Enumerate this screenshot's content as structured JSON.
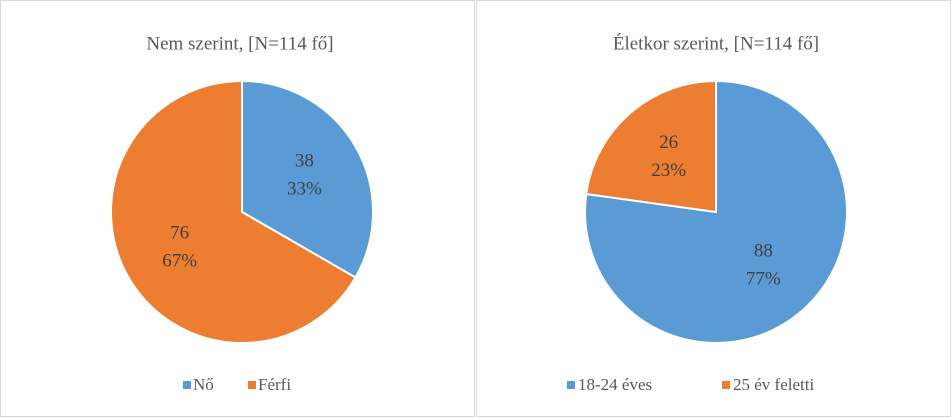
{
  "chart_data": [
    {
      "type": "pie",
      "title": "Nem szerint,  [N=114 fő]",
      "categories": [
        "Nő",
        "Férfi"
      ],
      "values": [
        38,
        76
      ],
      "percent_labels": [
        "33%",
        "67%"
      ],
      "colors": [
        "#5b9bd5",
        "#ed7d31"
      ],
      "legend": "bottom"
    },
    {
      "type": "pie",
      "title": "Életkor  szerint,  [N=114 fő]",
      "categories": [
        "18-24 éves",
        "25 év feletti"
      ],
      "values": [
        88,
        26
      ],
      "percent_labels": [
        "77%",
        "23%"
      ],
      "colors": [
        "#5b9bd5",
        "#ed7d31"
      ],
      "legend": "bottom"
    }
  ]
}
